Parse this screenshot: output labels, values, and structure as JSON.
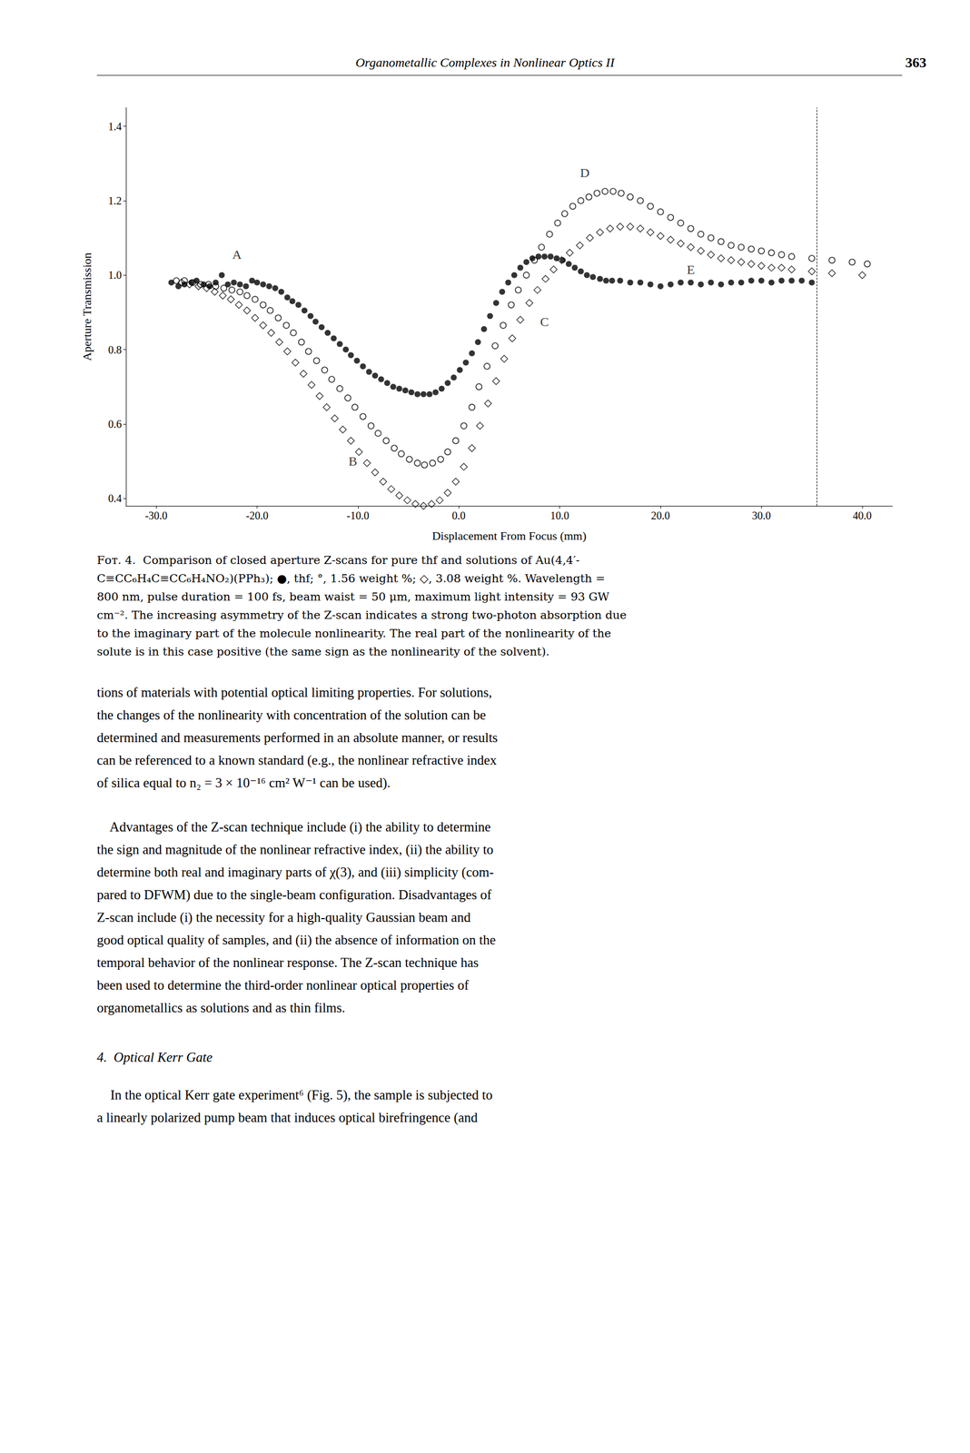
{
  "chart_data": {
    "type": "scatter",
    "header": "Organometallic Complexes in Nonlinear Optics II",
    "page_number": "363",
    "xlabel": "Displacement From Focus (mm)",
    "ylabel": "Aperture Transmission",
    "xlim": [
      -33,
      43
    ],
    "ylim": [
      0.38,
      1.45
    ],
    "xticks": [
      {
        "value": -30,
        "label": "-30.0"
      },
      {
        "value": -20,
        "label": "-20.0"
      },
      {
        "value": -10,
        "label": "-10.0"
      },
      {
        "value": 0,
        "label": "0.0"
      },
      {
        "value": 10,
        "label": "10.0"
      },
      {
        "value": 20,
        "label": "20.0"
      },
      {
        "value": 30,
        "label": "30.0"
      },
      {
        "value": 40,
        "label": "40.0"
      }
    ],
    "yticks": [
      0.4,
      0.6,
      0.8,
      {
        "value": 1,
        "label": "1.0"
      },
      1.2,
      1.4
    ],
    "grid": false,
    "series": [
      {
        "color": "#000000",
        "marker": "filled_circle",
        "x": [
          -28.5,
          -27.8,
          -27.2,
          -26.5,
          -26.0,
          -25.3,
          -24.7,
          -24.1,
          -23.5,
          -22.9,
          -22.3,
          -21.7,
          -21.1,
          -20.5,
          -20.0,
          -19.4,
          -18.8,
          -18.2,
          -17.6,
          -17.0,
          -16.5,
          -15.9,
          -15.3,
          -14.7,
          -14.2,
          -13.6,
          -13.0,
          -12.4,
          -11.8,
          -11.2,
          -10.7,
          -10.1,
          -9.5,
          -8.9,
          -8.3,
          -7.7,
          -7.1,
          -6.5,
          -5.9,
          -5.3,
          -4.7,
          -4.1,
          -3.5,
          -2.9,
          -2.3,
          -1.7,
          -1.1,
          -0.5,
          0.1,
          0.7,
          1.3,
          1.9,
          2.5,
          3.1,
          3.7,
          4.3,
          4.9,
          5.5,
          6.1,
          6.7,
          7.3,
          7.9,
          8.5,
          9.1,
          9.7,
          10.3,
          10.9,
          11.5,
          12.1,
          12.7,
          13.3,
          14.0,
          14.6,
          15.2,
          16.0,
          17.0,
          18.0,
          19.0,
          20.0,
          21.0,
          22.0,
          23.0,
          24.0,
          25.0,
          26.0,
          27.0,
          28.0,
          29.0,
          30.0,
          31.0,
          32.0,
          33.0,
          34.0,
          35.0
        ],
        "values": [
          0.98,
          0.97,
          0.975,
          0.98,
          0.985,
          0.975,
          0.97,
          0.98,
          1.0,
          0.975,
          0.98,
          0.975,
          0.97,
          0.985,
          0.98,
          0.975,
          0.97,
          0.965,
          0.955,
          0.94,
          0.93,
          0.92,
          0.905,
          0.89,
          0.875,
          0.86,
          0.845,
          0.83,
          0.815,
          0.8,
          0.785,
          0.77,
          0.755,
          0.74,
          0.73,
          0.72,
          0.71,
          0.7,
          0.695,
          0.69,
          0.685,
          0.68,
          0.68,
          0.68,
          0.685,
          0.695,
          0.71,
          0.725,
          0.745,
          0.765,
          0.79,
          0.82,
          0.855,
          0.89,
          0.925,
          0.955,
          0.98,
          1.0,
          1.02,
          1.035,
          1.045,
          1.05,
          1.05,
          1.05,
          1.045,
          1.04,
          1.03,
          1.02,
          1.01,
          1.0,
          0.995,
          0.99,
          0.985,
          0.985,
          0.985,
          0.98,
          0.98,
          0.975,
          0.97,
          0.975,
          0.98,
          0.98,
          0.975,
          0.98,
          0.975,
          0.98,
          0.98,
          0.985,
          0.985,
          0.98,
          0.985,
          0.985,
          0.985,
          0.98
        ]
      },
      {
        "color": "#000000",
        "marker": "open_circle",
        "x": [
          -28.0,
          -27.2,
          -26.4,
          -25.6,
          -24.8,
          -24.1,
          -23.3,
          -22.5,
          -21.7,
          -21.0,
          -20.2,
          -19.4,
          -18.7,
          -17.9,
          -17.1,
          -16.4,
          -15.6,
          -14.9,
          -14.1,
          -13.3,
          -12.6,
          -11.8,
          -11.0,
          -10.3,
          -9.5,
          -8.7,
          -8.0,
          -7.2,
          -6.4,
          -5.7,
          -4.9,
          -4.1,
          -3.4,
          -2.6,
          -1.8,
          -1.1,
          -0.3,
          0.5,
          1.3,
          2.0,
          2.8,
          3.6,
          4.4,
          5.2,
          5.9,
          6.7,
          7.5,
          8.2,
          9.0,
          9.8,
          10.5,
          11.3,
          12.1,
          12.9,
          13.7,
          14.5,
          15.3,
          16.1,
          17.0,
          18.0,
          19.0,
          20.0,
          21.0,
          22.0,
          23.0,
          24.0,
          25.0,
          26.0,
          27.0,
          28.0,
          29.0,
          30.0,
          31.0,
          32.0,
          33.0,
          35.0,
          37.0,
          39.0,
          40.5
        ],
        "values": [
          0.985,
          0.985,
          0.98,
          0.975,
          0.975,
          0.97,
          0.965,
          0.96,
          0.955,
          0.945,
          0.935,
          0.92,
          0.905,
          0.885,
          0.865,
          0.845,
          0.82,
          0.795,
          0.77,
          0.745,
          0.72,
          0.695,
          0.67,
          0.645,
          0.62,
          0.595,
          0.575,
          0.555,
          0.535,
          0.52,
          0.505,
          0.495,
          0.49,
          0.495,
          0.505,
          0.525,
          0.555,
          0.595,
          0.645,
          0.7,
          0.755,
          0.81,
          0.865,
          0.92,
          0.96,
          1.0,
          1.04,
          1.075,
          1.11,
          1.14,
          1.165,
          1.185,
          1.2,
          1.21,
          1.22,
          1.225,
          1.225,
          1.22,
          1.21,
          1.2,
          1.185,
          1.17,
          1.155,
          1.14,
          1.125,
          1.11,
          1.1,
          1.09,
          1.08,
          1.075,
          1.07,
          1.065,
          1.06,
          1.055,
          1.05,
          1.045,
          1.04,
          1.035,
          1.03
        ]
      },
      {
        "color": "#000000",
        "marker": "open_diamond",
        "x": [
          -27.5,
          -26.7,
          -25.8,
          -25.0,
          -24.2,
          -23.4,
          -22.6,
          -21.8,
          -21.0,
          -20.2,
          -19.4,
          -18.6,
          -17.8,
          -17.0,
          -16.2,
          -15.4,
          -14.6,
          -13.8,
          -13.1,
          -12.3,
          -11.5,
          -10.7,
          -9.9,
          -9.1,
          -8.3,
          -7.5,
          -6.7,
          -5.9,
          -5.1,
          -4.3,
          -3.5,
          -2.7,
          -1.9,
          -1.1,
          -0.3,
          0.5,
          1.3,
          2.1,
          2.9,
          3.7,
          4.5,
          5.3,
          6.1,
          7.0,
          7.8,
          8.6,
          9.4,
          10.2,
          11.0,
          12.0,
          13.0,
          14.0,
          15.0,
          16.0,
          17.0,
          18.0,
          19.0,
          20.0,
          21.0,
          22.0,
          23.0,
          24.0,
          25.0,
          26.0,
          27.0,
          28.0,
          29.0,
          30.0,
          31.0,
          32.0,
          33.0,
          35.0,
          37.0,
          40.0
        ],
        "values": [
          0.98,
          0.975,
          0.97,
          0.965,
          0.955,
          0.945,
          0.935,
          0.92,
          0.905,
          0.885,
          0.865,
          0.845,
          0.82,
          0.795,
          0.765,
          0.735,
          0.705,
          0.675,
          0.645,
          0.615,
          0.585,
          0.555,
          0.525,
          0.495,
          0.47,
          0.445,
          0.425,
          0.408,
          0.395,
          0.385,
          0.38,
          0.385,
          0.395,
          0.415,
          0.445,
          0.485,
          0.535,
          0.595,
          0.655,
          0.715,
          0.775,
          0.83,
          0.88,
          0.925,
          0.96,
          0.99,
          1.015,
          1.04,
          1.06,
          1.08,
          1.1,
          1.115,
          1.125,
          1.13,
          1.13,
          1.125,
          1.115,
          1.105,
          1.095,
          1.085,
          1.075,
          1.065,
          1.055,
          1.045,
          1.04,
          1.035,
          1.03,
          1.025,
          1.02,
          1.02,
          1.015,
          1.01,
          1.005,
          1.0
        ]
      }
    ],
    "annotations": [
      {
        "text": "A",
        "x": -22,
        "y": 1.055
      },
      {
        "text": "B",
        "x": -10.5,
        "y": 0.5
      },
      {
        "text": "C",
        "x": 8.5,
        "y": 0.875
      },
      {
        "text": "D",
        "x": 12.5,
        "y": 1.275
      },
      {
        "text": "E",
        "x": 23,
        "y": 1.015
      }
    ],
    "reference_lines": [
      {
        "x": 35.5,
        "line_style": "dashed"
      }
    ],
    "caption": [
      "Fᴏᴛ. 4.  Comparison of closed aperture Z-scans for pure thf and solutions of Au(4,4′-",
      "C≡CC₆H₄C≡CC₆H₄NO₂)(PPh₃); ●, thf; °, 1.56 weight %; ◇, 3.08 weight %. Wavelength =",
      "800 nm, pulse duration = 100 fs, beam waist = 50 μm, maximum light intensity = 93 GW",
      "cm⁻². The increasing asymmetry of the Z-scan indicates a strong two-photon absorption due",
      "to the imaginary part of the molecule nonlinearity. The real part of the nonlinearity of the",
      "solute is in this case positive (the same sign as the nonlinearity of the solvent)."
    ],
    "body_text": [
      [
        "tions of materials with potential optical limiting properties. For solutions,",
        "the changes of the nonlinearity with concentration of the solution can be",
        "determined and measurements performed in an absolute manner, or results",
        "can be referenced to a known standard (e.g., the nonlinear refractive index",
        "of silica equal to n₂ = 3 × 10⁻¹⁶ cm² W⁻¹ can be used)."
      ],
      [
        "    Advantages of the Z-scan technique include (i) the ability to determine",
        "the sign and magnitude of the nonlinear refractive index, (ii) the ability to",
        "determine both real and imaginary parts of χ(3), and (iii) simplicity (com-",
        "pared to DFWM) due to the single-beam configuration. Disadvantages of",
        "Z-scan include (i) the necessity for a high-quality Gaussian beam and",
        "good optical quality of samples, and (ii) the absence of information on the",
        "temporal behavior of the nonlinear response. The Z-scan technique has",
        "been used to determine the third-order nonlinear optical properties of",
        "organometallics as solutions and as thin films."
      ]
    ],
    "section_heading": "4.  Optical Kerr Gate",
    "body_text_after": [
      [
        "    In the optical Kerr gate experiment⁶ (Fig. 5), the sample is subjected to",
        "a linearly polarized pump beam that induces optical birefringence (and"
      ]
    ]
  }
}
